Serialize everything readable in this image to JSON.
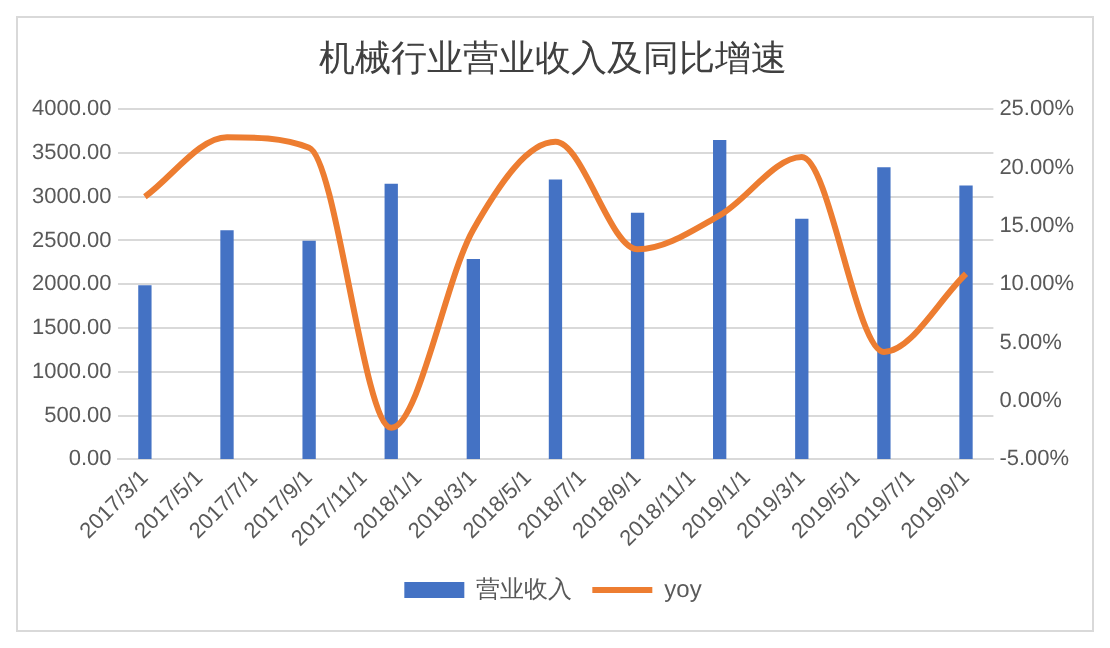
{
  "chart_data": {
    "type": "bar",
    "title": "机械行业营业收入及同比增速",
    "x": [
      "2017-03",
      "2017-06",
      "2017-09",
      "2017-12",
      "2018-03",
      "2018-06",
      "2018-09",
      "2018-12",
      "2019-03",
      "2019-06",
      "2019-09"
    ],
    "xlim": [
      "2017-03-01",
      "2019-09-01"
    ],
    "xticks": [
      {
        "value": "2017-03-01",
        "label": "2017/3/1"
      },
      {
        "value": "2017-05-01",
        "label": "2017/5/1"
      },
      {
        "value": "2017-07-01",
        "label": "2017/7/1"
      },
      {
        "value": "2017-09-01",
        "label": "2017/9/1"
      },
      {
        "value": "2017-11-01",
        "label": "2017/11/1"
      },
      {
        "value": "2018-01-01",
        "label": "2018/1/1"
      },
      {
        "value": "2018-03-01",
        "label": "2018/3/1"
      },
      {
        "value": "2018-05-01",
        "label": "2018/5/1"
      },
      {
        "value": "2018-07-01",
        "label": "2018/7/1"
      },
      {
        "value": "2018-09-01",
        "label": "2018/9/1"
      },
      {
        "value": "2018-11-01",
        "label": "2018/11/1"
      },
      {
        "value": "2019-01-01",
        "label": "2019/1/1"
      },
      {
        "value": "2019-03-01",
        "label": "2019/3/1"
      },
      {
        "value": "2019-05-01",
        "label": "2019/5/1"
      },
      {
        "value": "2019-07-01",
        "label": "2019/7/1"
      },
      {
        "value": "2019-09-01",
        "label": "2019/9/1"
      }
    ],
    "series": [
      {
        "name": "营业收入",
        "color": "#4472c4",
        "values": [
          1980,
          2610,
          2490,
          3140,
          2280,
          3190,
          2810,
          3640,
          2740,
          3330,
          3120
        ]
      },
      {
        "name": "yoy",
        "type": "line",
        "axis": "y2",
        "color": "#ed7d31",
        "marker": "none",
        "values": [
          17.5,
          22.6,
          21.7,
          -2.3,
          14.7,
          22.2,
          13.0,
          15.9,
          20.9,
          4.2,
          10.9
        ]
      }
    ],
    "ylim": [
      0,
      4000
    ],
    "yticks": [
      {
        "value": 0,
        "label": "0.00"
      },
      {
        "value": 500,
        "label": "500.00"
      },
      {
        "value": 1000,
        "label": "1000.00"
      },
      {
        "value": 1500,
        "label": "1500.00"
      },
      {
        "value": 2000,
        "label": "2000.00"
      },
      {
        "value": 2500,
        "label": "2500.00"
      },
      {
        "value": 3000,
        "label": "3000.00"
      },
      {
        "value": 3500,
        "label": "3500.00"
      },
      {
        "value": 4000,
        "label": "4000.00"
      }
    ],
    "y2lim": [
      -5,
      25
    ],
    "y2ticks": [
      {
        "value": -5,
        "label": "-5.00%"
      },
      {
        "value": 0,
        "label": "0.00%"
      },
      {
        "value": 5,
        "label": "5.00%"
      },
      {
        "value": 10,
        "label": "10.00%"
      },
      {
        "value": 15,
        "label": "15.00%"
      },
      {
        "value": 20,
        "label": "20.00%"
      },
      {
        "value": 25,
        "label": "25.00%"
      }
    ],
    "grid": "y",
    "legend": "bottom"
  }
}
